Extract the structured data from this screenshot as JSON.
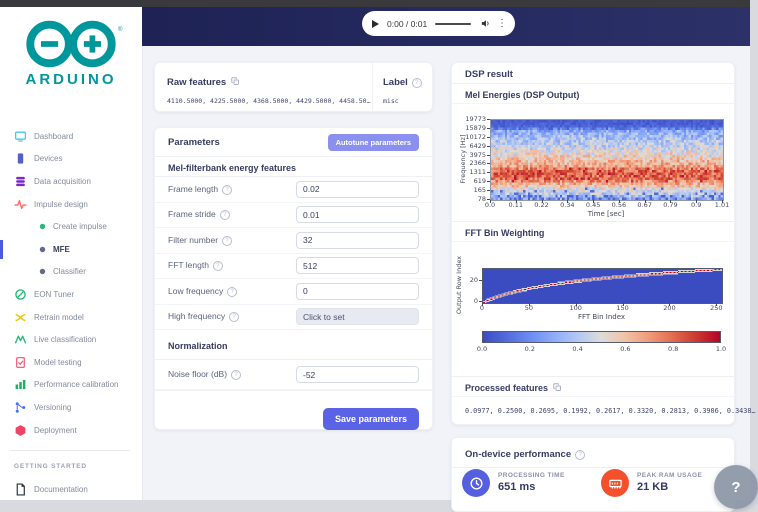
{
  "brand": {
    "name": "ARDUINO"
  },
  "player": {
    "time": "0:00 / 0:01"
  },
  "sidebar": {
    "section_label": "GETTING STARTED",
    "items": [
      {
        "label": "Dashboard",
        "icon": "dashboard-icon",
        "color": "#49c6e5",
        "type": "main",
        "active": false
      },
      {
        "label": "Devices",
        "icon": "devices-icon",
        "color": "#5361c7",
        "type": "main",
        "active": false
      },
      {
        "label": "Data acquisition",
        "icon": "data-acquisition-icon",
        "color": "#7a28cb",
        "type": "main",
        "active": false
      },
      {
        "label": "Impulse design",
        "icon": "impulse-design-icon",
        "color": "#ff6b5e",
        "type": "main",
        "active": false
      },
      {
        "label": "Create impulse",
        "icon": "dot-icon",
        "color": "#2eb67d",
        "type": "sub",
        "active": false
      },
      {
        "label": "MFE",
        "icon": "dot-icon",
        "color": "#5f6b8a",
        "type": "sub",
        "active": true
      },
      {
        "label": "Classifier",
        "icon": "dot-icon",
        "color": "#5f6b8a",
        "type": "sub",
        "active": false
      },
      {
        "label": "EON Tuner",
        "icon": "eon-tuner-icon",
        "color": "#21b573",
        "type": "main",
        "active": false
      },
      {
        "label": "Retrain model",
        "icon": "retrain-model-icon",
        "color": "#f2c200",
        "type": "main",
        "active": false
      },
      {
        "label": "Live classification",
        "icon": "live-classification-icon",
        "color": "#2eb67d",
        "type": "main",
        "active": false
      },
      {
        "label": "Model testing",
        "icon": "model-testing-icon",
        "color": "#f1607a",
        "type": "main",
        "active": false
      },
      {
        "label": "Performance calibration",
        "icon": "performance-calibration-icon",
        "color": "#27ae60",
        "type": "main",
        "active": false
      },
      {
        "label": "Versioning",
        "icon": "versioning-icon",
        "color": "#4c6fff",
        "type": "main",
        "active": false
      },
      {
        "label": "Deployment",
        "icon": "deployment-icon",
        "color": "#ef4565",
        "type": "main",
        "active": false
      }
    ],
    "bottom_items": [
      {
        "label": "Documentation",
        "icon": "documentation-icon",
        "color": "#2b3344",
        "type": "main",
        "active": false
      }
    ]
  },
  "raw_features": {
    "title": "Raw features",
    "value": "4110.5000, 4225.5000, 4368.5000, 4429.5000, 4458.50…"
  },
  "label_box": {
    "title": "Label",
    "value": "misc"
  },
  "parameters": {
    "title": "Parameters",
    "autotune_button": "Autotune parameters",
    "save_button": "Save parameters",
    "sections": [
      {
        "heading": "Mel-filterbank energy features",
        "fields": [
          {
            "label": "Frame length",
            "value": "0.02",
            "disabled": false
          },
          {
            "label": "Frame stride",
            "value": "0.01",
            "disabled": false
          },
          {
            "label": "Filter number",
            "value": "32",
            "disabled": false
          },
          {
            "label": "FFT length",
            "value": "512",
            "disabled": false
          },
          {
            "label": "Low frequency",
            "value": "0",
            "disabled": false
          },
          {
            "label": "High frequency",
            "value": "Click to set",
            "disabled": true
          }
        ]
      },
      {
        "heading": "Normalization",
        "fields": [
          {
            "label": "Noise floor (dB)",
            "value": "-52",
            "disabled": false
          }
        ]
      }
    ]
  },
  "dsp": {
    "title": "DSP result",
    "mel_title": "Mel Energies (DSP Output)",
    "fft_title": "FFT Bin Weighting",
    "processed_title": "Processed features",
    "processed_value": "0.0977, 0.2500, 0.2695, 0.1992, 0.2617, 0.3320, 0.2813, 0.3906, 0.3438…"
  },
  "chart_data": [
    {
      "type": "heatmap",
      "title": "Mel Energies (DSP Output)",
      "xlabel": "Time [sec]",
      "ylabel": "Frequency [Hz]",
      "x_ticks": [
        "0.0",
        "0.11",
        "0.22",
        "0.34",
        "0.45",
        "0.56",
        "0.67",
        "0.79",
        "0.9",
        "1.01"
      ],
      "y_ticks": [
        "19773",
        "15879",
        "10172",
        "6429",
        "3975",
        "2366",
        "1311",
        "619",
        "165",
        "78"
      ],
      "x_range": [
        0,
        1.01
      ],
      "colormap": "coolwarm",
      "cols": 101,
      "rows": 32,
      "row_profile": [
        [
          0,
          0.05
        ],
        [
          0.07,
          0.08
        ],
        [
          0.13,
          0.3
        ],
        [
          0.3,
          0.42
        ],
        [
          0.45,
          0.55
        ],
        [
          0.58,
          0.68
        ],
        [
          0.66,
          0.82
        ],
        [
          0.74,
          0.8
        ],
        [
          0.82,
          0.62
        ],
        [
          0.88,
          0.5
        ],
        [
          0.93,
          0.42
        ],
        [
          1,
          0.3
        ]
      ],
      "noise": 0.13
    },
    {
      "type": "heatmap",
      "title": "FFT Bin Weighting",
      "xlabel": "FFT Bin Index",
      "ylabel": "Output Row Index",
      "x_ticks": [
        "0",
        "50",
        "100",
        "150",
        "200",
        "250"
      ],
      "y_ticks": [
        "20",
        "0"
      ],
      "bins": 256,
      "rows": 32,
      "curve": "mel-log",
      "curve_s": 0.03,
      "background_value": 0,
      "curve_value": 1,
      "colormap": "coolwarm"
    },
    {
      "type": "colorbar",
      "ticks": [
        "0.0",
        "0.2",
        "0.4",
        "0.6",
        "0.8",
        "1.0"
      ],
      "range": [
        0,
        1
      ],
      "colormap": "coolwarm"
    }
  ],
  "performance": {
    "title": "On-device performance",
    "metrics": [
      {
        "label": "PROCESSING TIME",
        "value": "651 ms",
        "icon": "clock-icon",
        "color": "#5560df"
      },
      {
        "label": "PEAK RAM USAGE",
        "value": "21 KB",
        "icon": "ram-icon",
        "color": "#f4502c"
      }
    ]
  },
  "help_fab": "?"
}
